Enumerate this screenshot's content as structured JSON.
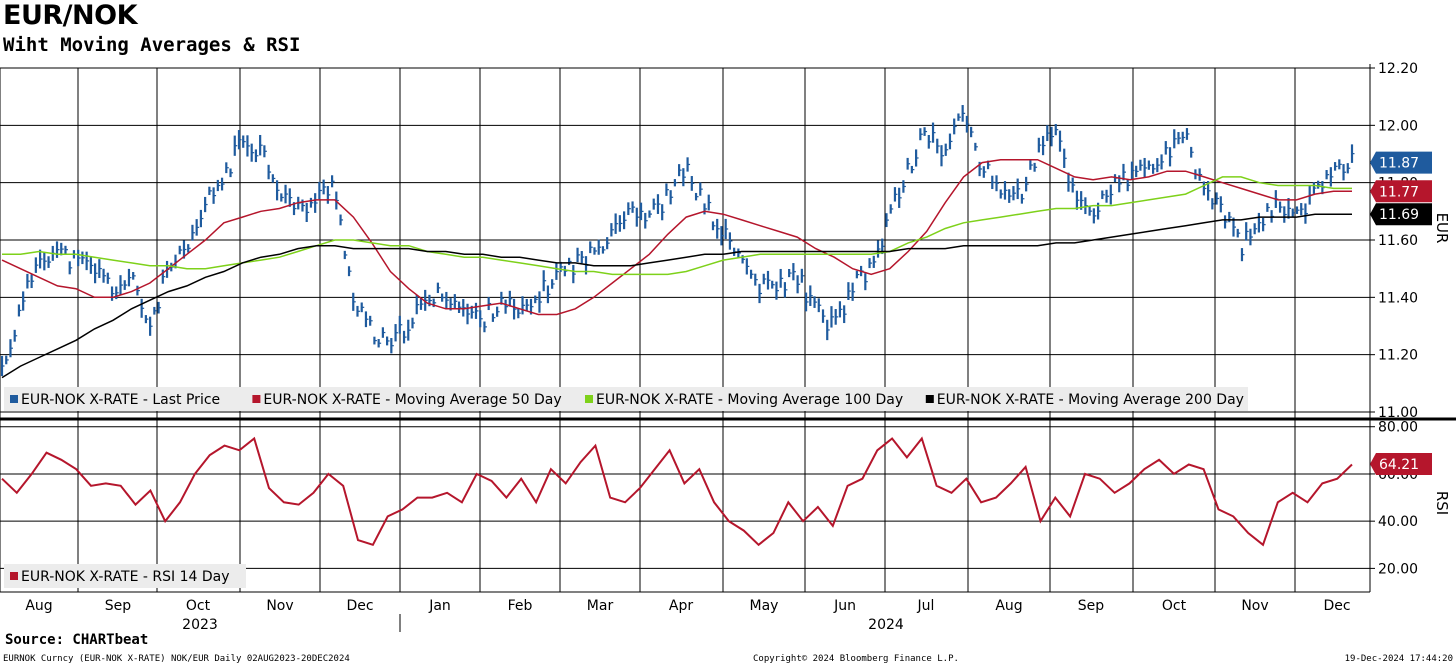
{
  "header": {
    "title": "EUR/NOK",
    "subtitle": "Wiht Moving Averages & RSI"
  },
  "footer": {
    "source": "Source: CHARTbeat",
    "left": "EURNOK Curncy (EUR-NOK X-RATE) NOK/EUR  Daily 02AUG2023-20DEC2024",
    "center": "Copyright© 2024 Bloomberg Finance L.P.",
    "right": "19-Dec-2024 17:44:20"
  },
  "colors": {
    "price": "#1f5b9e",
    "ma50": "#b5162c",
    "ma100": "#7ed11a",
    "ma200": "#000000",
    "rsi": "#b5162c",
    "grid": "#000000",
    "legend_bg": "#ececec"
  },
  "chart_data": [
    {
      "type": "line",
      "title": "EUR/NOK",
      "subtitle": "Wiht Moving Averages & RSI",
      "ylabel": "EUR",
      "ylim": [
        11.0,
        12.2
      ],
      "yticks": [
        "11.00",
        "11.20",
        "11.40",
        "11.60",
        "11.80",
        "12.00",
        "12.20"
      ],
      "grid": true,
      "legend": {
        "position": "bottom-left",
        "entries": [
          {
            "name": "EUR-NOK X-RATE - Last Price",
            "color_key": "price"
          },
          {
            "name": "EUR-NOK X-RATE - Moving Average 50 Day",
            "color_key": "ma50"
          },
          {
            "name": "EUR-NOK X-RATE - Moving Average 100 Day",
            "color_key": "ma100"
          },
          {
            "name": "EUR-NOK X-RATE - Moving Average 200 Day",
            "color_key": "ma200"
          }
        ]
      },
      "last_value_labels": [
        {
          "text": "11.87",
          "value": 11.87,
          "color_key": "price"
        },
        {
          "text": "11.77",
          "value": 11.77,
          "color_key": "ma50"
        },
        {
          "text": "11.69",
          "value": 11.69,
          "color_key": "ma200"
        }
      ],
      "x": [
        "2023-08-02",
        "2023-08-09",
        "2023-08-16",
        "2023-08-23",
        "2023-08-30",
        "2023-09-06",
        "2023-09-13",
        "2023-09-20",
        "2023-09-27",
        "2023-10-04",
        "2023-10-11",
        "2023-10-18",
        "2023-10-25",
        "2023-11-01",
        "2023-11-08",
        "2023-11-15",
        "2023-11-22",
        "2023-11-29",
        "2023-12-06",
        "2023-12-13",
        "2023-12-20",
        "2023-12-27",
        "2024-01-03",
        "2024-01-10",
        "2024-01-17",
        "2024-01-24",
        "2024-01-31",
        "2024-02-07",
        "2024-02-14",
        "2024-02-21",
        "2024-02-28",
        "2024-03-06",
        "2024-03-13",
        "2024-03-20",
        "2024-03-27",
        "2024-04-03",
        "2024-04-10",
        "2024-04-17",
        "2024-04-24",
        "2024-05-01",
        "2024-05-08",
        "2024-05-15",
        "2024-05-22",
        "2024-05-29",
        "2024-06-05",
        "2024-06-12",
        "2024-06-19",
        "2024-06-26",
        "2024-07-03",
        "2024-07-10",
        "2024-07-17",
        "2024-07-24",
        "2024-07-31",
        "2024-08-07",
        "2024-08-14",
        "2024-08-21",
        "2024-08-28",
        "2024-09-04",
        "2024-09-11",
        "2024-09-18",
        "2024-09-25",
        "2024-10-02",
        "2024-10-09",
        "2024-10-16",
        "2024-10-23",
        "2024-10-30",
        "2024-11-06",
        "2024-11-13",
        "2024-11-20",
        "2024-11-27",
        "2024-12-04",
        "2024-12-11",
        "2024-12-18",
        "2024-12-20"
      ],
      "series": [
        {
          "name": "EUR-NOK X-RATE - Last Price",
          "color_key": "price",
          "values": [
            11.15,
            11.35,
            11.55,
            11.56,
            11.52,
            11.5,
            11.43,
            11.46,
            11.3,
            11.5,
            11.55,
            11.72,
            11.82,
            11.95,
            11.92,
            11.78,
            11.7,
            11.74,
            11.8,
            11.38,
            11.28,
            11.22,
            11.32,
            11.38,
            11.42,
            11.35,
            11.32,
            11.4,
            11.33,
            11.4,
            11.48,
            11.52,
            11.55,
            11.65,
            11.72,
            11.68,
            11.75,
            11.85,
            11.72,
            11.62,
            11.53,
            11.43,
            11.44,
            11.48,
            11.35,
            11.3,
            11.43,
            11.5,
            11.68,
            11.85,
            11.98,
            11.9,
            12.05,
            11.85,
            11.78,
            11.75,
            11.9,
            11.98,
            11.75,
            11.7,
            11.78,
            11.82,
            11.85,
            11.9,
            11.95,
            11.78,
            11.7,
            11.58,
            11.65,
            11.72,
            11.7,
            11.75,
            11.87,
            11.87
          ]
        },
        {
          "name": "EUR-NOK X-RATE - Moving Average 50 Day",
          "color_key": "ma50",
          "values": [
            11.53,
            11.5,
            11.47,
            11.44,
            11.43,
            11.4,
            11.4,
            11.42,
            11.45,
            11.5,
            11.55,
            11.6,
            11.66,
            11.68,
            11.7,
            11.71,
            11.73,
            11.74,
            11.74,
            11.68,
            11.59,
            11.49,
            11.43,
            11.38,
            11.36,
            11.36,
            11.37,
            11.38,
            11.36,
            11.34,
            11.34,
            11.36,
            11.4,
            11.45,
            11.5,
            11.55,
            11.62,
            11.68,
            11.7,
            11.69,
            11.67,
            11.65,
            11.63,
            11.61,
            11.57,
            11.54,
            11.5,
            11.48,
            11.5,
            11.56,
            11.63,
            11.73,
            11.82,
            11.87,
            11.88,
            11.88,
            11.88,
            11.85,
            11.82,
            11.81,
            11.82,
            11.81,
            11.82,
            11.84,
            11.84,
            11.82,
            11.8,
            11.78,
            11.76,
            11.74,
            11.74,
            11.76,
            11.77,
            11.77
          ]
        },
        {
          "name": "EUR-NOK X-RATE - Moving Average 100 Day",
          "color_key": "ma100",
          "values": [
            11.55,
            11.55,
            11.56,
            11.55,
            11.55,
            11.54,
            11.53,
            11.52,
            11.51,
            11.51,
            11.5,
            11.5,
            11.51,
            11.52,
            11.53,
            11.54,
            11.56,
            11.58,
            11.6,
            11.6,
            11.59,
            11.58,
            11.58,
            11.56,
            11.55,
            11.54,
            11.54,
            11.53,
            11.52,
            11.51,
            11.5,
            11.49,
            11.49,
            11.48,
            11.48,
            11.48,
            11.48,
            11.49,
            11.51,
            11.53,
            11.54,
            11.55,
            11.55,
            11.55,
            11.55,
            11.55,
            11.55,
            11.55,
            11.56,
            11.59,
            11.61,
            11.64,
            11.66,
            11.67,
            11.68,
            11.69,
            11.7,
            11.71,
            11.71,
            11.72,
            11.72,
            11.73,
            11.74,
            11.75,
            11.76,
            11.79,
            11.82,
            11.82,
            11.8,
            11.79,
            11.79,
            11.79,
            11.78,
            11.78
          ]
        },
        {
          "name": "EUR-NOK X-RATE - Moving Average 200 Day",
          "color_key": "ma200",
          "values": [
            11.12,
            11.16,
            11.19,
            11.22,
            11.25,
            11.29,
            11.32,
            11.36,
            11.39,
            11.42,
            11.44,
            11.47,
            11.49,
            11.52,
            11.54,
            11.55,
            11.57,
            11.58,
            11.58,
            11.57,
            11.57,
            11.57,
            11.57,
            11.56,
            11.56,
            11.55,
            11.55,
            11.54,
            11.54,
            11.53,
            11.52,
            11.52,
            11.51,
            11.51,
            11.51,
            11.52,
            11.53,
            11.54,
            11.55,
            11.55,
            11.56,
            11.56,
            11.56,
            11.56,
            11.56,
            11.56,
            11.56,
            11.56,
            11.56,
            11.57,
            11.57,
            11.57,
            11.58,
            11.58,
            11.58,
            11.58,
            11.58,
            11.59,
            11.59,
            11.6,
            11.61,
            11.62,
            11.63,
            11.64,
            11.65,
            11.66,
            11.67,
            11.67,
            11.68,
            11.68,
            11.68,
            11.69,
            11.69,
            11.69
          ]
        }
      ]
    },
    {
      "type": "line",
      "ylabel": "RSI",
      "ylim": [
        10,
        82
      ],
      "yticks": [
        "20.00",
        "40.00",
        "60.00",
        "80.00"
      ],
      "grid": true,
      "legend": {
        "position": "bottom-left",
        "entries": [
          {
            "name": "EUR-NOK X-RATE - RSI 14 Day",
            "color_key": "rsi"
          }
        ]
      },
      "last_value_labels": [
        {
          "text": "64.21",
          "value": 64.21,
          "color_key": "rsi"
        }
      ],
      "x_axis": {
        "months": [
          "Aug",
          "Sep",
          "Oct",
          "Nov",
          "Dec",
          "Jan",
          "Feb",
          "Mar",
          "Apr",
          "May",
          "Jun",
          "Jul",
          "Aug",
          "Sep",
          "Oct",
          "Nov",
          "Dec"
        ],
        "years": [
          "2023",
          "2024"
        ]
      },
      "series": [
        {
          "name": "EUR-NOK X-RATE - RSI 14 Day",
          "color_key": "rsi",
          "values": [
            58,
            52,
            60,
            69,
            66,
            62,
            55,
            56,
            55,
            47,
            53,
            40,
            48,
            60,
            68,
            72,
            70,
            75,
            54,
            48,
            47,
            52,
            60,
            55,
            32,
            30,
            42,
            45,
            50,
            50,
            52,
            48,
            60,
            57,
            50,
            58,
            48,
            62,
            56,
            65,
            72,
            50,
            48,
            54,
            62,
            70,
            56,
            62,
            48,
            40,
            36,
            30,
            35,
            48,
            40,
            46,
            38,
            55,
            58,
            70,
            75,
            67,
            75,
            55,
            52,
            58,
            48,
            50,
            56,
            63,
            40,
            50,
            42,
            60,
            58,
            52,
            56,
            62,
            66,
            60,
            64,
            62,
            45,
            42,
            35,
            30,
            48,
            52,
            48,
            56,
            58,
            64
          ]
        }
      ]
    }
  ]
}
